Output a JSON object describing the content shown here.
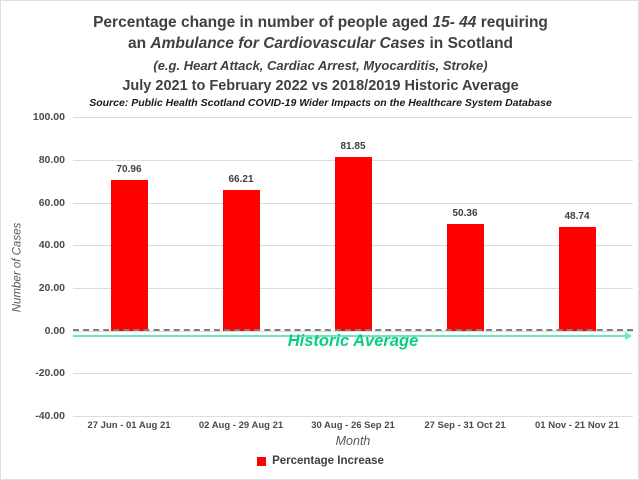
{
  "title": {
    "line1_pre": "Percentage change in number of people aged ",
    "line1_italic": "15- 44",
    "line1_post": " requiring",
    "line2_pre": "an ",
    "line2_italic": "Ambulance for Cardiovascular Cases",
    "line2_post": " in Scotland",
    "line3": "(e.g. Heart Attack, Cardiac Arrest, Myocarditis, Stroke)",
    "line4": "July 2021 to February 2022 vs 2018/2019 Historic Average",
    "source": "Source: Public Health Scotland COVID-19 Wider Impacts on the Healthcare System Database"
  },
  "chart_data": {
    "type": "bar",
    "categories": [
      "27 Jun - 01 Aug 21",
      "02 Aug - 29 Aug 21",
      "30 Aug - 26 Sep 21",
      "27 Sep - 31 Oct 21",
      "01 Nov - 21 Nov 21"
    ],
    "series": [
      {
        "name": "Percentage Increase",
        "values": [
          70.96,
          66.21,
          81.85,
          50.36,
          48.74
        ]
      }
    ],
    "xlabel": "Month",
    "ylabel": "Number of Cases",
    "ylim": [
      -40,
      100
    ],
    "ytick_step": 20,
    "ytick_decimals": 2,
    "grid": true,
    "bar_color": "#ff0000",
    "legend": {
      "label": "Percentage Increase",
      "position": "bottom",
      "swatch_color": "#ff0000"
    },
    "zero_line": {
      "style": "dashed",
      "color": "#7f7f7f"
    },
    "annotation": {
      "label": "Historic Average",
      "value": 0,
      "label_color": "#0bce82",
      "line_color": "#6fe3be"
    }
  }
}
